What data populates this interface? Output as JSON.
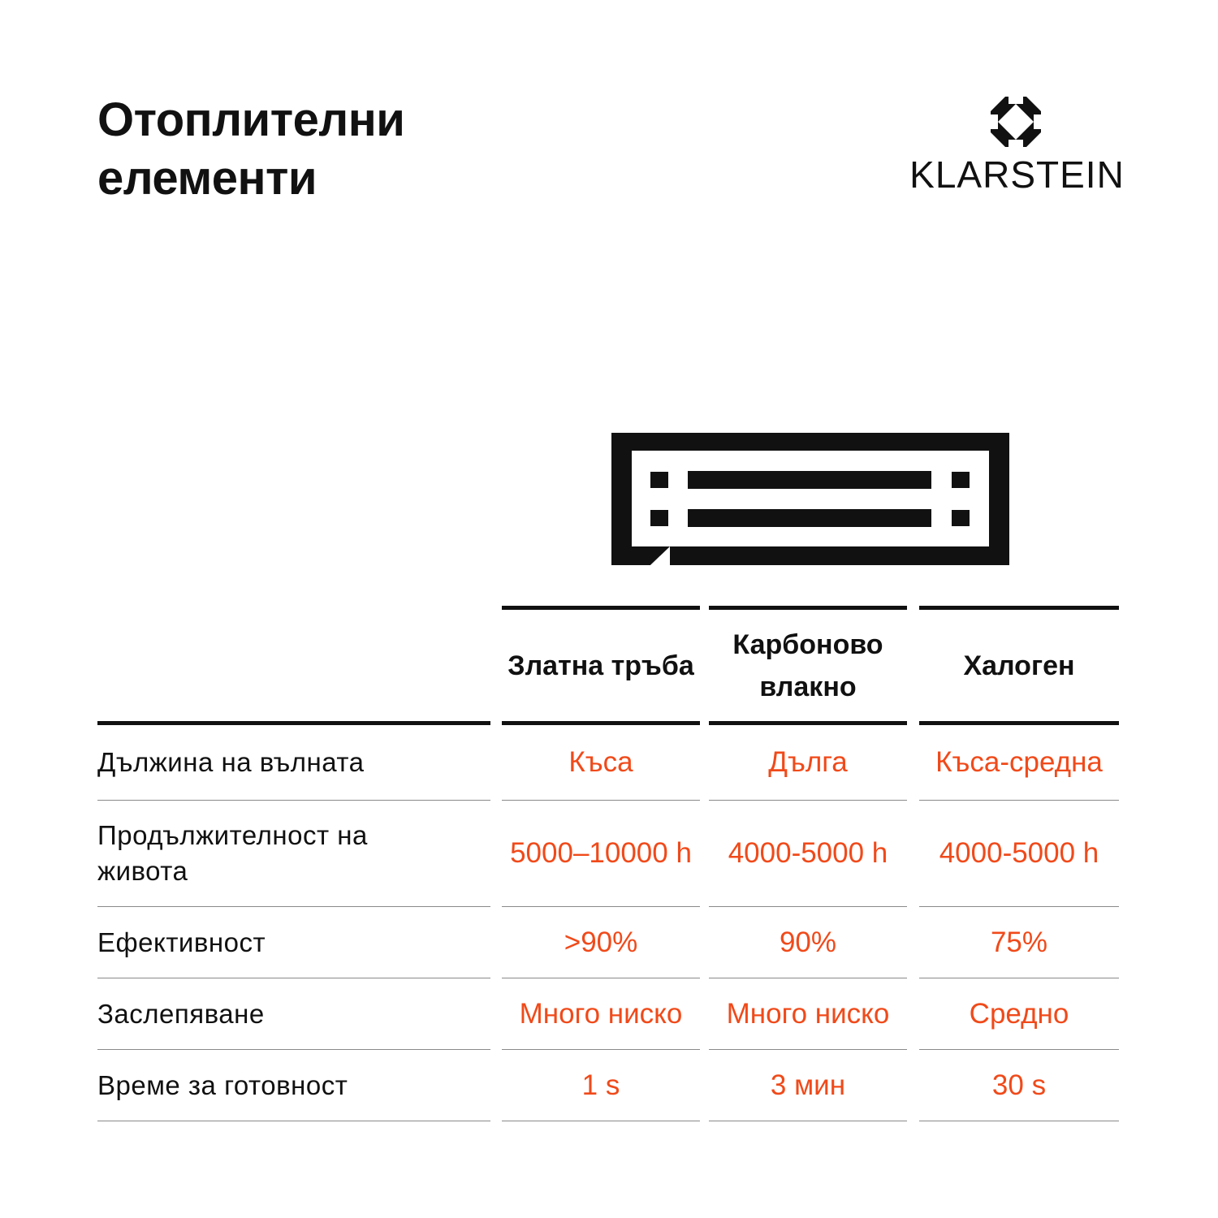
{
  "title": {
    "line1": "Отоплителни",
    "line2": "елементи"
  },
  "brand": {
    "name": "KLARSTEIN",
    "mark_icon": "klarstein-octagon-logo-icon"
  },
  "illustration": {
    "icon": "heating-element-icon"
  },
  "colors": {
    "text": "#111111",
    "accent": "#f04a1a",
    "divider": "#8a8a8a"
  },
  "table": {
    "columns": [
      "Златна тръба",
      "Карбоново влакно",
      "Халоген"
    ],
    "rows": [
      {
        "label": "Дължина на вълната",
        "values": [
          "Къса",
          "Дълга",
          "Къса-средна"
        ]
      },
      {
        "label": "Продължителност на живота",
        "values": [
          "5000–10000 h",
          "4000-5000 h",
          "4000-5000 h"
        ]
      },
      {
        "label": "Ефективност",
        "values": [
          ">90%",
          "90%",
          "75%"
        ]
      },
      {
        "label": "Заслепяване",
        "values": [
          "Много ниско",
          "Много ниско",
          "Средно"
        ]
      },
      {
        "label": "Време за готовност",
        "values": [
          "1 s",
          "3 мин",
          "30 s"
        ]
      }
    ]
  }
}
